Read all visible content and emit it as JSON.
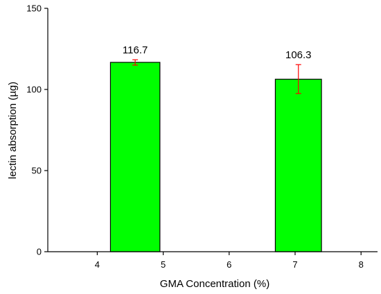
{
  "chart_data": {
    "type": "bar",
    "title": "",
    "xlabel": "GMA Concentration (%)",
    "ylabel": "lectin absorption (µg)",
    "x_ticks": [
      4,
      5,
      6,
      7,
      8
    ],
    "xlim": [
      3.25,
      8.25
    ],
    "ylim": [
      0,
      150
    ],
    "y_ticks": [
      0,
      50,
      100,
      150
    ],
    "bars": [
      {
        "x_start": 4.2,
        "x_end": 4.95,
        "value": 116.7,
        "label": "116.7",
        "error_low": 115.0,
        "error_high": 118.3
      },
      {
        "x_start": 6.7,
        "x_end": 7.4,
        "value": 106.3,
        "label": "106.3",
        "error_low": 97.5,
        "error_high": 115.3
      }
    ],
    "grid": false,
    "legend": "none",
    "colors": {
      "bar_fill": "#00ff00",
      "bar_stroke": "#000000",
      "error_bar": "#ff0000"
    }
  }
}
